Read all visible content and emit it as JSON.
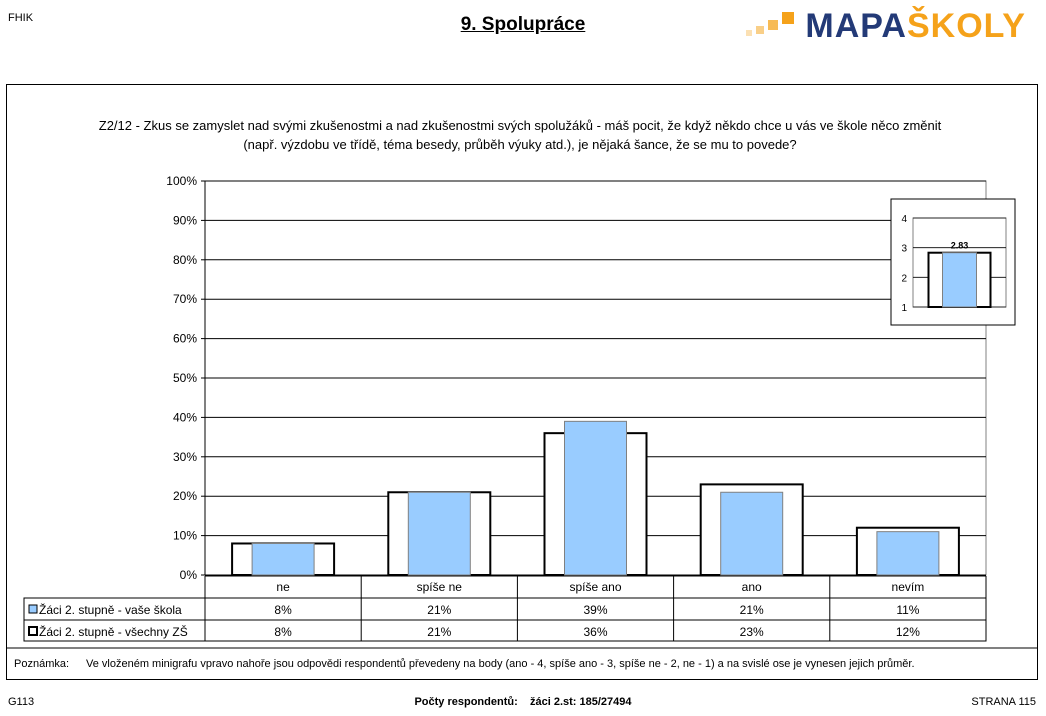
{
  "header": {
    "left": "FHIK",
    "title": "9. Spolupráce",
    "logo": {
      "part1": "MAPA",
      "part2": "ŠKOLY"
    }
  },
  "question": {
    "line1": "Z2/12 - Zkus se zamyslet nad svými zkušenostmi a nad zkušenostmi svých spolužáků - máš pocit, že když někdo chce u vás ve škole něco změnit",
    "line2": "(např. výzdobu ve třídě, téma besedy, průběh výuky atd.), je nějaká šance, že se mu to povede?"
  },
  "chart_data": [
    {
      "type": "bar",
      "categories": [
        "ne",
        "spíše ne",
        "spíše ano",
        "ano",
        "nevím"
      ],
      "series": [
        {
          "name": "Žáci 2. stupně - vaše škola",
          "values": [
            8,
            21,
            39,
            21,
            11
          ],
          "labels": [
            "8%",
            "21%",
            "39%",
            "21%",
            "11%"
          ],
          "color": "#99ccff"
        },
        {
          "name": "Žáci 2. stupně - všechny ZŠ",
          "values": [
            8,
            21,
            36,
            23,
            12
          ],
          "labels": [
            "8%",
            "21%",
            "36%",
            "23%",
            "12%"
          ],
          "color": "#ffffff"
        }
      ],
      "ylim": [
        0,
        100
      ],
      "yticks": [
        "0%",
        "10%",
        "20%",
        "30%",
        "40%",
        "50%",
        "60%",
        "70%",
        "80%",
        "90%",
        "100%"
      ],
      "grid": true,
      "legend": "data-table"
    },
    {
      "type": "bar",
      "title": "",
      "series": [
        {
          "name": "vaše škola",
          "values": [
            2.83
          ],
          "color": "#99ccff"
        },
        {
          "name": "všechny ZŠ",
          "values": [
            2.83
          ],
          "color": "#ffffff"
        }
      ],
      "value_label": "2.83",
      "ylim": [
        1,
        4
      ],
      "yticks": [
        "1",
        "2",
        "3",
        "4"
      ],
      "grid": true
    }
  ],
  "note": {
    "label": "Poznámka:",
    "text": "Ve vloženém minigrafu vpravo nahoře jsou odpovědi respondentů převedeny na body (ano - 4, spíše ano - 3, spíše ne - 2, ne - 1) a na svislé ose je vynesen jejich průměr."
  },
  "footer": {
    "left": "G113",
    "respondents_label": "Počty respondentů:",
    "respondents_value": "žáci 2.st: 185/27494",
    "right": "STRANA 115"
  }
}
